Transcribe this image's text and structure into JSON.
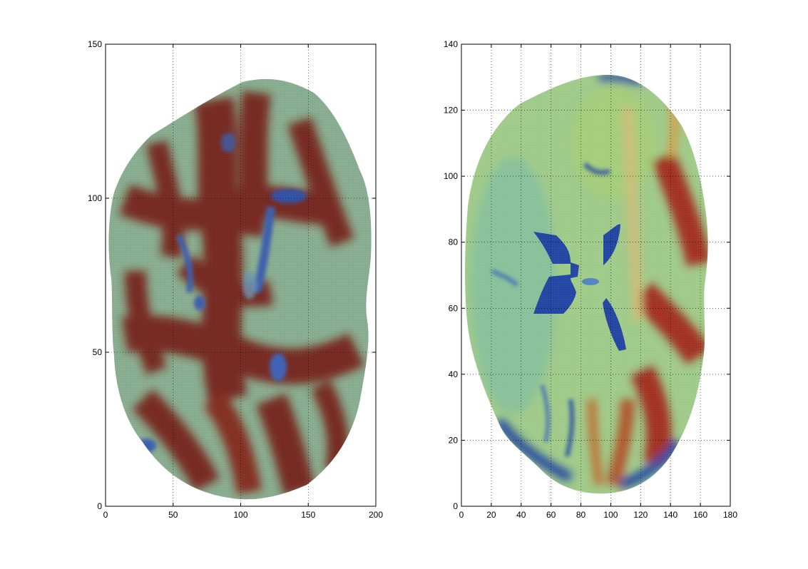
{
  "figure": {
    "background": "#ffffff",
    "colormap": "jet",
    "grid_line_color": "#000000"
  },
  "chart_data": [
    {
      "type": "heatmap",
      "title": "",
      "xlabel": "",
      "ylabel": "",
      "xlim": [
        0,
        200
      ],
      "ylim": [
        0,
        150
      ],
      "xticks": [
        0,
        50,
        100,
        150,
        200
      ],
      "yticks": [
        0,
        50,
        100,
        150
      ],
      "grid": true,
      "legend": "none",
      "description_colors": [
        "#7f1a12",
        "#7fbf9a",
        "#1c3fa8"
      ],
      "region": {
        "x": [
          0,
          197
        ],
        "y": [
          1,
          139
        ]
      }
    },
    {
      "type": "heatmap",
      "title": "",
      "xlabel": "",
      "ylabel": "",
      "xlim": [
        0,
        180
      ],
      "ylim": [
        0,
        140
      ],
      "xticks": [
        0,
        20,
        40,
        60,
        80,
        100,
        120,
        140,
        160,
        180
      ],
      "yticks": [
        0,
        20,
        40,
        60,
        80,
        100,
        120,
        140
      ],
      "grid": true,
      "legend": "none",
      "description_colors": [
        "#9fcf8a",
        "#1c3fa8",
        "#a52a1a"
      ],
      "region": {
        "x": [
          0,
          168
        ],
        "y": [
          4,
          131
        ]
      }
    }
  ]
}
